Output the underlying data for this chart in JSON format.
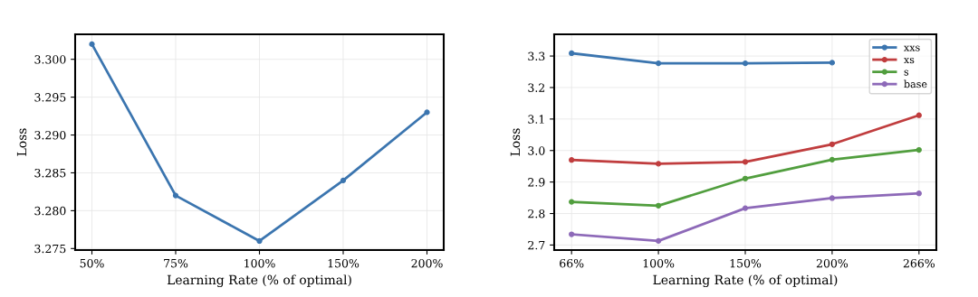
{
  "chart_data": [
    {
      "type": "line",
      "xlabel": "Learning Rate (% of optimal)",
      "ylabel": "Loss",
      "categories": [
        "50%",
        "75%",
        "100%",
        "150%",
        "200%"
      ],
      "series": [
        {
          "color": "#3b75af",
          "values": [
            3.302,
            3.282,
            3.276,
            3.284,
            3.293
          ]
        }
      ],
      "ylim": [
        3.2748,
        3.3033
      ],
      "yticks": [
        {
          "value": 3.275,
          "label": "3.275"
        },
        {
          "value": 3.28,
          "label": "3.280"
        },
        {
          "value": 3.285,
          "label": "3.285"
        },
        {
          "value": 3.29,
          "label": "3.290"
        },
        {
          "value": 3.295,
          "label": "3.295"
        },
        {
          "value": 3.3,
          "label": "3.300"
        }
      ],
      "grid": true,
      "marker": "circle",
      "line_style": "solid"
    },
    {
      "type": "line",
      "xlabel": "Learning Rate (% of optimal)",
      "ylabel": "Loss",
      "categories": [
        "66%",
        "100%",
        "150%",
        "200%",
        "266%"
      ],
      "series": [
        {
          "name": "xxs",
          "color": "#3b75af",
          "values": [
            3.309,
            3.277,
            3.277,
            3.279,
            null
          ]
        },
        {
          "name": "xs",
          "color": "#c03d3e",
          "values": [
            2.97,
            2.958,
            2.964,
            3.02,
            3.112
          ]
        },
        {
          "name": "s",
          "color": "#519e3e",
          "values": [
            2.837,
            2.825,
            2.911,
            2.971,
            3.002
          ]
        },
        {
          "name": "base",
          "color": "#8d69b8",
          "values": [
            2.734,
            2.713,
            2.817,
            2.849,
            2.864
          ]
        }
      ],
      "ylim": [
        2.684,
        3.369
      ],
      "yticks": [
        2.7,
        2.8,
        2.9,
        {
          "value": 3.0,
          "label": "3.0"
        },
        3.1,
        3.2,
        3.3
      ],
      "grid": true,
      "legend": "top right",
      "marker": "circle",
      "line_style": "solid"
    }
  ]
}
